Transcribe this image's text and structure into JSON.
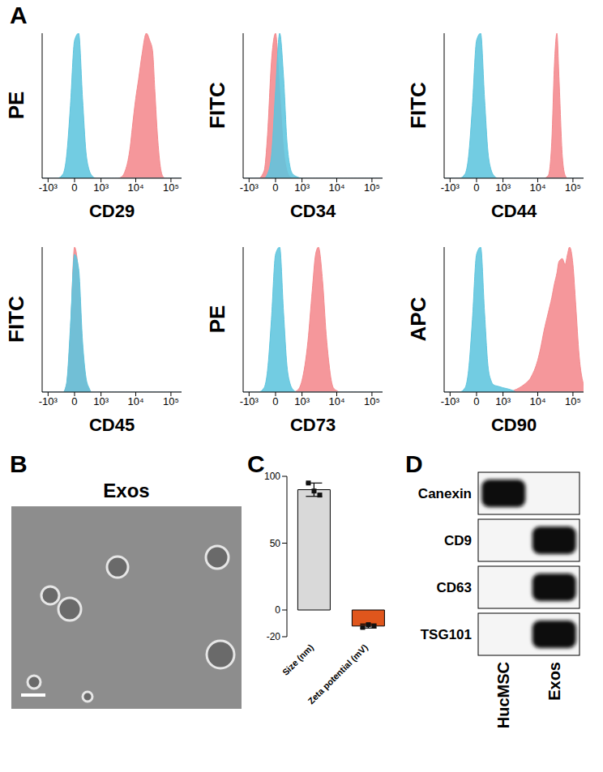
{
  "panel_labels": [
    "A",
    "B",
    "C",
    "D"
  ],
  "chart_data": [
    {
      "type": "area",
      "x_label": "CD29",
      "y_label": "PE",
      "x": [
        -1500,
        -1000,
        -700,
        -500,
        -300,
        -200,
        -100,
        0,
        100,
        200,
        300,
        400,
        500,
        700,
        1000,
        1500,
        2000,
        2500,
        3000,
        4000,
        5000,
        6000,
        7000,
        8000,
        10000,
        12000,
        15000,
        20000,
        25000,
        30000,
        35000,
        40000,
        50000,
        60000,
        70000,
        80000,
        100000,
        120000,
        150000,
        200000
      ],
      "series": [
        {
          "color": "#f4898d",
          "values": [
            0,
            0,
            0,
            0,
            0,
            0,
            0,
            0,
            0,
            0,
            0,
            0,
            0,
            0,
            0,
            0,
            0,
            0,
            0,
            1,
            5,
            12,
            22,
            35,
            55,
            68,
            85,
            100,
            95,
            88,
            60,
            35,
            8,
            1,
            0,
            0,
            0,
            0,
            0,
            0
          ]
        },
        {
          "color": "#5fc5de",
          "values": [
            0,
            0,
            0,
            0,
            3,
            15,
            50,
            95,
            100,
            55,
            18,
            6,
            2,
            0,
            0,
            0,
            0,
            0,
            0,
            0,
            0,
            0,
            0,
            0,
            0,
            0,
            0,
            0,
            0,
            0,
            0,
            0,
            0,
            0,
            0,
            0,
            0,
            0,
            0,
            0
          ]
        }
      ],
      "xlim": [
        -1500,
        200000
      ],
      "xticks": [
        {
          "value": -1000,
          "label": "-10³"
        },
        0,
        {
          "value": 1000,
          "label": "10³"
        },
        {
          "value": 10000,
          "label": "10⁴"
        },
        {
          "value": 100000,
          "label": "10⁵"
        }
      ],
      "ylim": [
        0,
        100
      ],
      "yticks": [
        0,
        25,
        50,
        75,
        100
      ],
      "tick_labels": "x"
    },
    {
      "type": "area",
      "x_label": "CD34",
      "y_label": "FITC",
      "x": [
        -1500,
        -1000,
        -700,
        -500,
        -300,
        -200,
        -100,
        0,
        100,
        200,
        300,
        400,
        500,
        700,
        1000,
        1500,
        2000,
        2500,
        3000,
        4000,
        5000,
        6000,
        7000,
        8000,
        10000,
        12000,
        15000,
        20000,
        25000,
        30000,
        35000,
        40000,
        50000,
        60000,
        70000,
        80000,
        100000,
        120000,
        150000,
        200000
      ],
      "series": [
        {
          "color": "#f4898d",
          "values": [
            0,
            0,
            0,
            0,
            5,
            30,
            80,
            100,
            60,
            20,
            5,
            1,
            0,
            0,
            0,
            0,
            0,
            0,
            0,
            0,
            0,
            0,
            0,
            0,
            0,
            0,
            0,
            0,
            0,
            0,
            0,
            0,
            0,
            0,
            0,
            0,
            0,
            0,
            0,
            0
          ]
        },
        {
          "color": "#5fc5de",
          "values": [
            0,
            0,
            0,
            0,
            0,
            3,
            15,
            60,
            100,
            70,
            25,
            8,
            3,
            1,
            0,
            0,
            0,
            0,
            0,
            0,
            0,
            0,
            0,
            0,
            0,
            0,
            0,
            0,
            0,
            0,
            0,
            0,
            0,
            0,
            0,
            0,
            0,
            0,
            0,
            0
          ]
        }
      ],
      "xlim": [
        -1500,
        200000
      ],
      "xticks": [
        {
          "value": -1000,
          "label": "-10³"
        },
        0,
        {
          "value": 1000,
          "label": "10³"
        },
        {
          "value": 10000,
          "label": "10⁴"
        },
        {
          "value": 100000,
          "label": "10⁵"
        }
      ],
      "ylim": [
        0,
        100
      ],
      "yticks": [
        0,
        25,
        50,
        75,
        100
      ],
      "tick_labels": "x"
    },
    {
      "type": "area",
      "x_label": "CD44",
      "y_label": "FITC",
      "x": [
        -1500,
        -1000,
        -700,
        -500,
        -300,
        -200,
        -100,
        0,
        100,
        200,
        300,
        400,
        500,
        700,
        1000,
        1500,
        2000,
        2500,
        3000,
        4000,
        5000,
        6000,
        7000,
        8000,
        10000,
        12000,
        15000,
        20000,
        25000,
        30000,
        35000,
        40000,
        50000,
        60000,
        70000,
        80000,
        100000,
        120000,
        150000,
        200000
      ],
      "series": [
        {
          "color": "#f4898d",
          "values": [
            0,
            0,
            0,
            0,
            0,
            0,
            0,
            0,
            0,
            0,
            0,
            0,
            0,
            0,
            0,
            0,
            0,
            0,
            0,
            0,
            0,
            0,
            0,
            0,
            0,
            0,
            0,
            2,
            25,
            80,
            100,
            70,
            15,
            2,
            0,
            0,
            0,
            0,
            0,
            0
          ]
        },
        {
          "color": "#5fc5de",
          "values": [
            0,
            0,
            0,
            0,
            3,
            15,
            50,
            95,
            100,
            55,
            18,
            6,
            2,
            0,
            0,
            0,
            0,
            0,
            0,
            0,
            0,
            0,
            0,
            0,
            0,
            0,
            0,
            0,
            0,
            0,
            0,
            0,
            0,
            0,
            0,
            0,
            0,
            0,
            0,
            0
          ]
        }
      ],
      "xlim": [
        -1500,
        200000
      ],
      "xticks": [
        {
          "value": -1000,
          "label": "-10³"
        },
        0,
        {
          "value": 1000,
          "label": "10³"
        },
        {
          "value": 10000,
          "label": "10⁴"
        },
        {
          "value": 100000,
          "label": "10⁵"
        }
      ],
      "ylim": [
        0,
        100
      ],
      "yticks": [
        0,
        25,
        50,
        75,
        100
      ],
      "tick_labels": "x"
    },
    {
      "type": "area",
      "x_label": "CD45",
      "y_label": "FITC",
      "x": [
        -1500,
        -1000,
        -700,
        -500,
        -300,
        -200,
        -100,
        0,
        100,
        200,
        300,
        400,
        500,
        700,
        1000,
        1500,
        2000,
        2500,
        3000,
        4000,
        5000,
        6000,
        7000,
        8000,
        10000,
        12000,
        15000,
        20000,
        25000,
        30000,
        35000,
        40000,
        50000,
        60000,
        70000,
        80000,
        100000,
        120000,
        150000,
        200000
      ],
      "series": [
        {
          "color": "#f4898d",
          "values": [
            0,
            0,
            0,
            0,
            0,
            5,
            40,
            100,
            80,
            30,
            8,
            2,
            0,
            0,
            0,
            0,
            0,
            0,
            0,
            0,
            0,
            0,
            0,
            0,
            0,
            0,
            0,
            0,
            0,
            0,
            0,
            0,
            0,
            0,
            0,
            0,
            0,
            0,
            0,
            0
          ]
        },
        {
          "color": "#5fc5de",
          "values": [
            0,
            0,
            0,
            0,
            0,
            6,
            45,
            95,
            85,
            35,
            10,
            3,
            0,
            0,
            0,
            0,
            0,
            0,
            0,
            0,
            0,
            0,
            0,
            0,
            0,
            0,
            0,
            0,
            0,
            0,
            0,
            0,
            0,
            0,
            0,
            0,
            0,
            0,
            0,
            0
          ]
        }
      ],
      "xlim": [
        -1500,
        200000
      ],
      "xticks": [
        {
          "value": -1000,
          "label": "-10³"
        },
        0,
        {
          "value": 1000,
          "label": "10³"
        },
        {
          "value": 10000,
          "label": "10⁴"
        },
        {
          "value": 100000,
          "label": "10⁵"
        }
      ],
      "ylim": [
        0,
        100
      ],
      "yticks": [
        0,
        25,
        50,
        75,
        100
      ],
      "tick_labels": "x"
    },
    {
      "type": "area",
      "x_label": "CD73",
      "y_label": "PE",
      "x": [
        -1500,
        -1000,
        -700,
        -500,
        -300,
        -200,
        -100,
        0,
        100,
        200,
        300,
        400,
        500,
        700,
        1000,
        1500,
        2000,
        2500,
        3000,
        4000,
        5000,
        6000,
        7000,
        8000,
        10000,
        12000,
        15000,
        20000,
        25000,
        30000,
        35000,
        40000,
        50000,
        60000,
        70000,
        80000,
        100000,
        120000,
        150000,
        200000
      ],
      "series": [
        {
          "color": "#f4898d",
          "values": [
            0,
            0,
            0,
            0,
            0,
            0,
            0,
            0,
            0,
            0,
            0,
            0,
            0,
            1,
            8,
            35,
            70,
            95,
            100,
            75,
            40,
            20,
            8,
            3,
            1,
            0,
            0,
            0,
            0,
            0,
            0,
            0,
            0,
            0,
            0,
            0,
            0,
            0,
            0,
            0
          ]
        },
        {
          "color": "#5fc5de",
          "values": [
            0,
            0,
            0,
            0,
            3,
            15,
            50,
            95,
            100,
            55,
            18,
            6,
            2,
            0,
            0,
            0,
            0,
            0,
            0,
            0,
            0,
            0,
            0,
            0,
            0,
            0,
            0,
            0,
            0,
            0,
            0,
            0,
            0,
            0,
            0,
            0,
            0,
            0,
            0,
            0
          ]
        }
      ],
      "xlim": [
        -1500,
        200000
      ],
      "xticks": [
        {
          "value": -1000,
          "label": "-10³"
        },
        0,
        {
          "value": 1000,
          "label": "10³"
        },
        {
          "value": 10000,
          "label": "10⁴"
        },
        {
          "value": 100000,
          "label": "10⁵"
        }
      ],
      "ylim": [
        0,
        100
      ],
      "yticks": [
        0,
        25,
        50,
        75,
        100
      ],
      "tick_labels": "x"
    },
    {
      "type": "area",
      "x_label": "CD90",
      "y_label": "APC",
      "x": [
        -1500,
        -1000,
        -700,
        -500,
        -300,
        -200,
        -100,
        0,
        100,
        200,
        300,
        400,
        500,
        700,
        1000,
        1500,
        2000,
        2500,
        3000,
        4000,
        5000,
        6000,
        7000,
        8000,
        10000,
        12000,
        15000,
        20000,
        25000,
        30000,
        35000,
        40000,
        50000,
        60000,
        70000,
        80000,
        100000,
        120000,
        150000,
        200000
      ],
      "series": [
        {
          "color": "#f4898d",
          "values": [
            0,
            0,
            0,
            0,
            0,
            0,
            0,
            0,
            0,
            0,
            0,
            0,
            0,
            0,
            0,
            0,
            1,
            2,
            3,
            5,
            7,
            9,
            12,
            15,
            22,
            30,
            42,
            55,
            65,
            75,
            82,
            90,
            92,
            88,
            95,
            100,
            88,
            60,
            25,
            5
          ]
        },
        {
          "color": "#5fc5de",
          "values": [
            0,
            0,
            0,
            0,
            3,
            15,
            50,
            95,
            100,
            55,
            18,
            8,
            5,
            4,
            3,
            2,
            1,
            0,
            0,
            0,
            0,
            0,
            0,
            0,
            0,
            0,
            0,
            0,
            0,
            0,
            0,
            0,
            0,
            0,
            0,
            0,
            0,
            0,
            0,
            0
          ]
        }
      ],
      "xlim": [
        -1500,
        200000
      ],
      "xticks": [
        {
          "value": -1000,
          "label": "-10³"
        },
        0,
        {
          "value": 1000,
          "label": "10³"
        },
        {
          "value": 10000,
          "label": "10⁴"
        },
        {
          "value": 100000,
          "label": "10⁵"
        }
      ],
      "ylim": [
        0,
        100
      ],
      "yticks": [
        0,
        25,
        50,
        75,
        100
      ],
      "tick_labels": "x"
    },
    {
      "type": "bar",
      "categories": [
        "Size (nm)",
        "Zeta potential (mV)"
      ],
      "values": [
        90,
        -12
      ],
      "error": [
        5,
        1.5
      ],
      "points": [
        [
          95,
          89,
          86
        ],
        [
          -13,
          -11,
          -12
        ]
      ],
      "colors": [
        "#d9d9d9",
        "#e0561c"
      ],
      "ylim": [
        -20,
        100
      ],
      "yticks": [
        -20,
        0,
        50,
        100
      ]
    }
  ],
  "image": {
    "title": "Exos"
  },
  "blot": {
    "rows": [
      "Canexin",
      "CD9",
      "CD63",
      "TSG101"
    ],
    "columns": [
      "HucMSC",
      "Exos"
    ],
    "bands": [
      [
        1,
        0
      ],
      [
        0,
        1
      ],
      [
        0,
        1
      ],
      [
        0,
        1
      ]
    ]
  }
}
